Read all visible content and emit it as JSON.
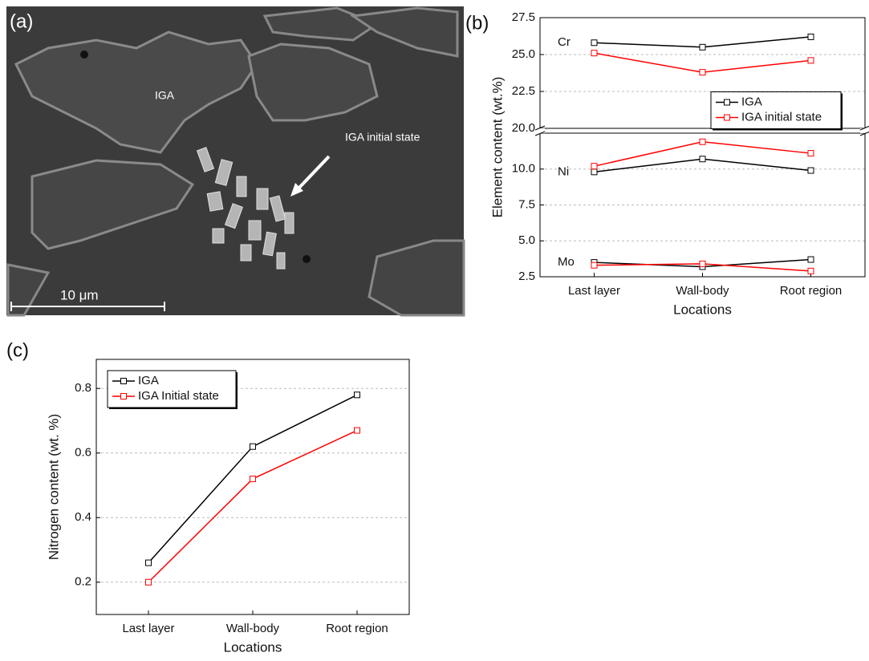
{
  "panel_a": {
    "label": "(a)",
    "annotations": [
      "IGA",
      "IGA initial state"
    ],
    "scale_bar": "10 μm"
  },
  "chart_data": [
    {
      "type": "line",
      "label": "(b)",
      "ylabel": "Element content (wt.%)",
      "xlabel": "Locations",
      "categories": [
        "Last layer",
        "Wall-body",
        "Root region"
      ],
      "elements": [
        "Cr",
        "Ni",
        "Mo"
      ],
      "series": [
        {
          "name": "IGA",
          "color": "#000000",
          "values": [
            [
              25.8,
              25.5,
              26.2
            ],
            [
              9.8,
              10.7,
              9.9
            ],
            [
              3.5,
              3.2,
              3.7
            ]
          ]
        },
        {
          "name": "IGA initial state",
          "color": "#ff0000",
          "values": [
            [
              25.1,
              23.8,
              24.6
            ],
            [
              10.2,
              11.9,
              11.1
            ],
            [
              3.3,
              3.4,
              2.9
            ]
          ]
        }
      ],
      "ylim": [
        2.5,
        27.5
      ],
      "y_break": [
        12.5,
        20
      ],
      "yticks": [
        2.5,
        {
          "value": 5,
          "label": "5.0"
        },
        7.5,
        {
          "value": 10,
          "label": "10.0"
        },
        {
          "value": 20,
          "label": "20.0"
        },
        22.5,
        {
          "value": 25,
          "label": "25.0"
        },
        27.5
      ],
      "grid": true,
      "legend": "right"
    },
    {
      "type": "line",
      "label": "(c)",
      "ylabel": "Nitrogen content (wt. %)",
      "xlabel": "Locations",
      "categories": [
        "Last layer",
        "Wall-body",
        "Root region"
      ],
      "series": [
        {
          "name": "IGA",
          "color": "#000000",
          "values": [
            0.26,
            0.62,
            0.78
          ]
        },
        {
          "name": "IGA Initial state",
          "color": "#ff0000",
          "values": [
            0.2,
            0.52,
            0.67
          ]
        }
      ],
      "ylim": [
        0.1,
        0.89
      ],
      "yticks": [
        0.2,
        0.4,
        0.6,
        0.8
      ],
      "grid": true,
      "legend": "top-left"
    }
  ]
}
